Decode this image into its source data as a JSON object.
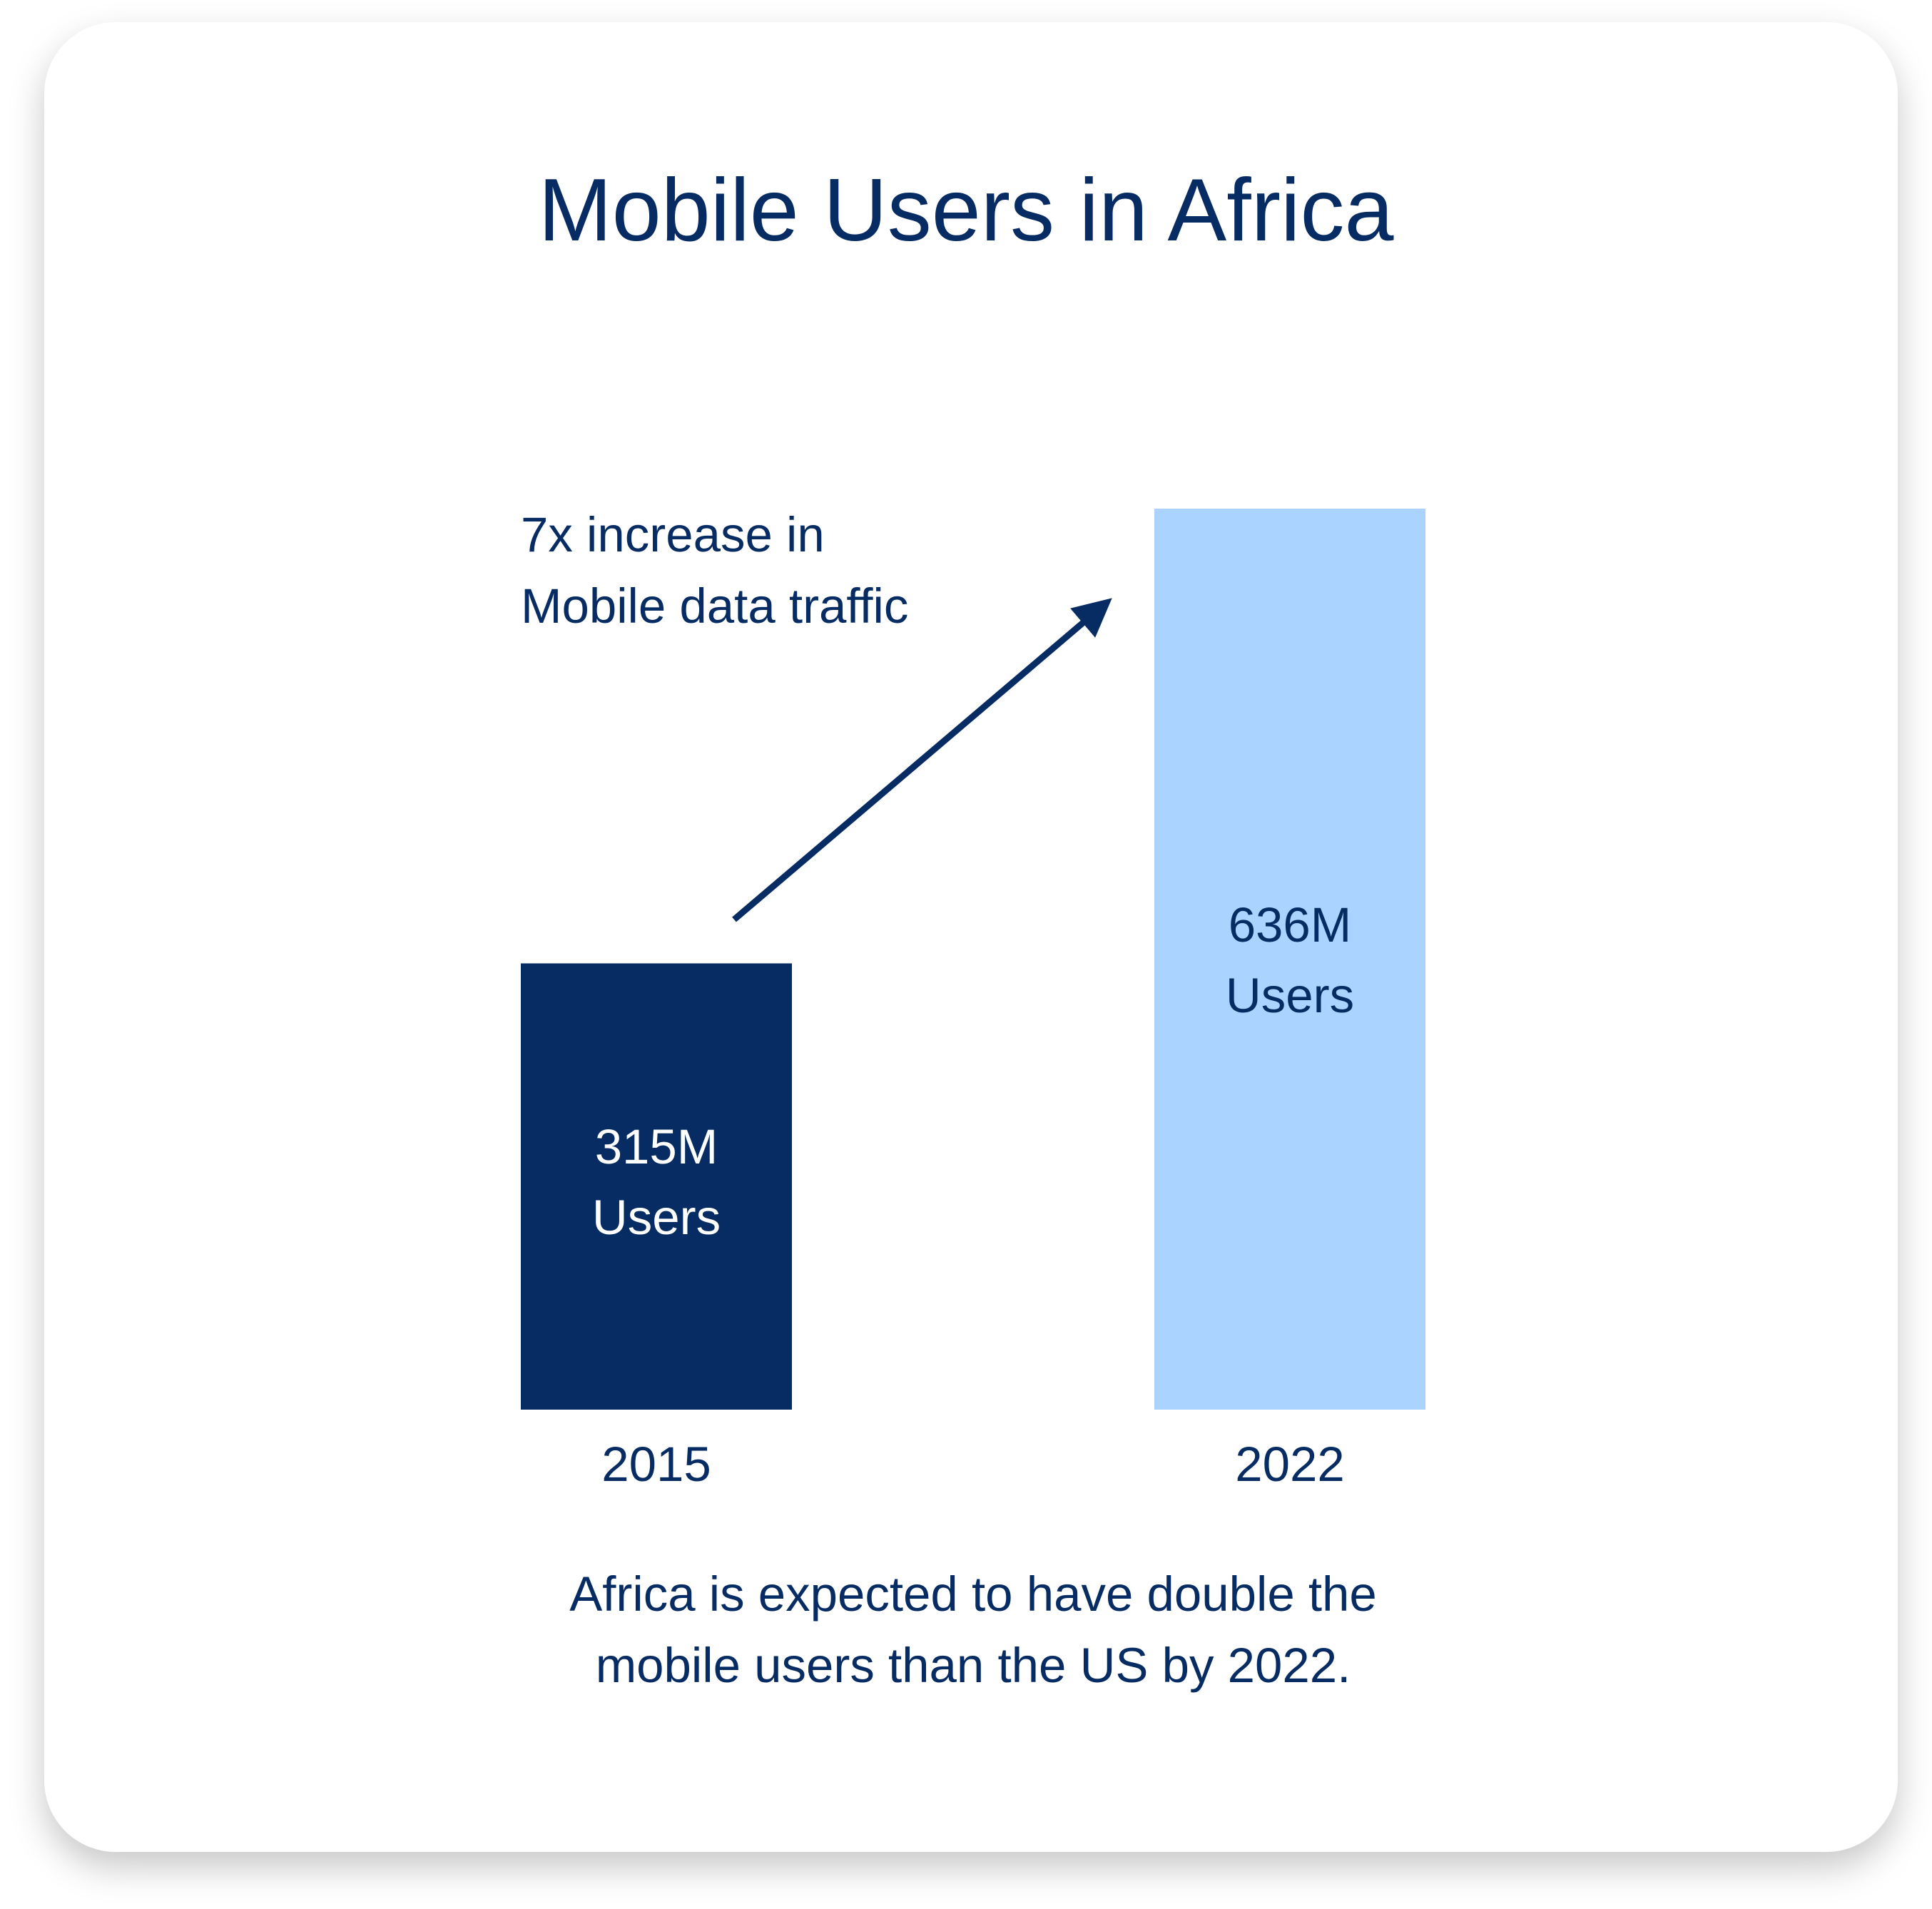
{
  "chart_data": {
    "type": "bar",
    "title": "Mobile Users in Africa",
    "categories": [
      "2015",
      "2022"
    ],
    "values": [
      315,
      636
    ],
    "unit": "M",
    "data_labels": [
      {
        "line1": "315M",
        "line2": "Users"
      },
      {
        "line1": "636M",
        "line2": "Users"
      }
    ],
    "colors": [
      "#062c63",
      "#aad4ff"
    ],
    "label_colors": [
      "#ffffff",
      "#062c63"
    ],
    "annotation": {
      "line1": "7x increase in",
      "line2": "Mobile data traffic"
    },
    "footnote": {
      "line1": "Africa is expected to have double the",
      "line2": "mobile users than the US by 2022."
    },
    "grid": false,
    "axes_visible": false
  }
}
